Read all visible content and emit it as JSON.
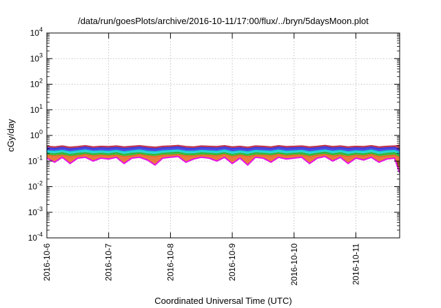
{
  "chart_data": {
    "type": "line",
    "title": "/data/run/goesPlots/archive/2016-10-11/17:00/flux/../bryn/5daysMoon.plot",
    "xlabel": "Coordinated Universal Time (UTC)",
    "ylabel": "cGy/day",
    "yscale": "log",
    "ylim": [
      0.0001,
      10000
    ],
    "yticks": [
      {
        "value": 0.0001,
        "exp": "-4"
      },
      {
        "value": 0.001,
        "exp": "-3"
      },
      {
        "value": 0.01,
        "exp": "-2"
      },
      {
        "value": 0.1,
        "exp": "-1"
      },
      {
        "value": 1,
        "exp": "0"
      },
      {
        "value": 10,
        "exp": "1"
      },
      {
        "value": 100,
        "exp": "2"
      },
      {
        "value": 1000,
        "exp": "3"
      },
      {
        "value": 10000,
        "exp": "4"
      }
    ],
    "xlim": [
      "2016-10-06",
      "2016-10-11T17:00"
    ],
    "xticks": [
      "2016-10-6",
      "2016-10-7",
      "2016-10-8",
      "2016-10-9",
      "2016-10-10",
      "2016-10-11"
    ],
    "grid": true,
    "legend": "none",
    "x": [
      "2016-10-06T00:00",
      "2016-10-06T03:00",
      "2016-10-06T06:00",
      "2016-10-06T09:00",
      "2016-10-06T12:00",
      "2016-10-06T15:00",
      "2016-10-06T18:00",
      "2016-10-06T21:00",
      "2016-10-07T00:00",
      "2016-10-07T03:00",
      "2016-10-07T06:00",
      "2016-10-07T09:00",
      "2016-10-07T12:00",
      "2016-10-07T15:00",
      "2016-10-07T18:00",
      "2016-10-07T21:00",
      "2016-10-08T00:00",
      "2016-10-08T03:00",
      "2016-10-08T06:00",
      "2016-10-08T09:00",
      "2016-10-08T12:00",
      "2016-10-08T15:00",
      "2016-10-08T18:00",
      "2016-10-08T21:00",
      "2016-10-09T00:00",
      "2016-10-09T03:00",
      "2016-10-09T06:00",
      "2016-10-09T09:00",
      "2016-10-09T12:00",
      "2016-10-09T15:00",
      "2016-10-09T18:00",
      "2016-10-09T21:00",
      "2016-10-10T00:00",
      "2016-10-10T03:00",
      "2016-10-10T06:00",
      "2016-10-10T09:00",
      "2016-10-10T12:00",
      "2016-10-10T15:00",
      "2016-10-10T18:00",
      "2016-10-10T21:00",
      "2016-10-11T00:00",
      "2016-10-11T03:00",
      "2016-10-11T06:00",
      "2016-10-11T09:00",
      "2016-10-11T12:00",
      "2016-10-11T15:00",
      "2016-10-11T17:00"
    ],
    "series": [
      {
        "color": "#c0324a",
        "values": [
          0.38,
          0.36,
          0.39,
          0.35,
          0.37,
          0.4,
          0.36,
          0.38,
          0.37,
          0.39,
          0.36,
          0.38,
          0.4,
          0.37,
          0.35,
          0.38,
          0.39,
          0.41,
          0.37,
          0.36,
          0.39,
          0.38,
          0.37,
          0.4,
          0.36,
          0.38,
          0.35,
          0.39,
          0.38,
          0.36,
          0.4,
          0.37,
          0.38,
          0.39,
          0.36,
          0.38,
          0.41,
          0.37,
          0.39,
          0.36,
          0.38,
          0.37,
          0.4,
          0.36,
          0.38,
          0.39,
          0.42
        ]
      },
      {
        "color": "#3a3adf",
        "values": [
          0.33,
          0.31,
          0.34,
          0.3,
          0.32,
          0.35,
          0.31,
          0.33,
          0.32,
          0.34,
          0.31,
          0.33,
          0.35,
          0.32,
          0.3,
          0.33,
          0.34,
          0.36,
          0.32,
          0.31,
          0.34,
          0.33,
          0.32,
          0.35,
          0.31,
          0.33,
          0.3,
          0.34,
          0.33,
          0.31,
          0.35,
          0.32,
          0.33,
          0.34,
          0.31,
          0.33,
          0.36,
          0.32,
          0.34,
          0.31,
          0.33,
          0.32,
          0.35,
          0.31,
          0.33,
          0.34,
          0.3
        ]
      },
      {
        "color": "#19d3d3",
        "values": [
          0.25,
          0.24,
          0.26,
          0.23,
          0.25,
          0.27,
          0.24,
          0.25,
          0.24,
          0.26,
          0.23,
          0.25,
          0.27,
          0.24,
          0.23,
          0.25,
          0.26,
          0.27,
          0.24,
          0.24,
          0.26,
          0.25,
          0.24,
          0.27,
          0.23,
          0.25,
          0.23,
          0.26,
          0.25,
          0.24,
          0.27,
          0.24,
          0.25,
          0.26,
          0.23,
          0.25,
          0.27,
          0.24,
          0.26,
          0.23,
          0.25,
          0.24,
          0.27,
          0.23,
          0.25,
          0.26,
          0.22
        ]
      },
      {
        "color": "#2fb52f",
        "values": [
          0.2,
          0.19,
          0.21,
          0.18,
          0.2,
          0.21,
          0.19,
          0.2,
          0.19,
          0.21,
          0.18,
          0.2,
          0.21,
          0.19,
          0.18,
          0.2,
          0.21,
          0.22,
          0.19,
          0.19,
          0.21,
          0.2,
          0.19,
          0.21,
          0.18,
          0.2,
          0.18,
          0.21,
          0.2,
          0.19,
          0.21,
          0.19,
          0.2,
          0.21,
          0.18,
          0.2,
          0.22,
          0.19,
          0.21,
          0.18,
          0.2,
          0.19,
          0.21,
          0.18,
          0.2,
          0.21,
          0.17
        ]
      },
      {
        "color": "#e86a2a",
        "values": [
          0.17,
          0.16,
          0.17,
          0.15,
          0.16,
          0.18,
          0.16,
          0.17,
          0.16,
          0.17,
          0.15,
          0.16,
          0.18,
          0.16,
          0.15,
          0.17,
          0.17,
          0.18,
          0.16,
          0.16,
          0.17,
          0.17,
          0.16,
          0.18,
          0.15,
          0.17,
          0.15,
          0.17,
          0.17,
          0.16,
          0.18,
          0.16,
          0.17,
          0.17,
          0.15,
          0.17,
          0.18,
          0.16,
          0.17,
          0.15,
          0.17,
          0.16,
          0.18,
          0.15,
          0.16,
          0.17,
          0.14
        ]
      },
      {
        "color": "#e813e8",
        "values": [
          0.13,
          0.09,
          0.14,
          0.08,
          0.13,
          0.14,
          0.1,
          0.13,
          0.12,
          0.14,
          0.08,
          0.13,
          0.14,
          0.11,
          0.07,
          0.13,
          0.14,
          0.15,
          0.09,
          0.12,
          0.14,
          0.13,
          0.1,
          0.14,
          0.08,
          0.13,
          0.07,
          0.14,
          0.13,
          0.09,
          0.14,
          0.12,
          0.13,
          0.14,
          0.08,
          0.13,
          0.15,
          0.1,
          0.14,
          0.08,
          0.13,
          0.11,
          0.14,
          0.09,
          0.12,
          0.13,
          0.035
        ]
      }
    ]
  }
}
